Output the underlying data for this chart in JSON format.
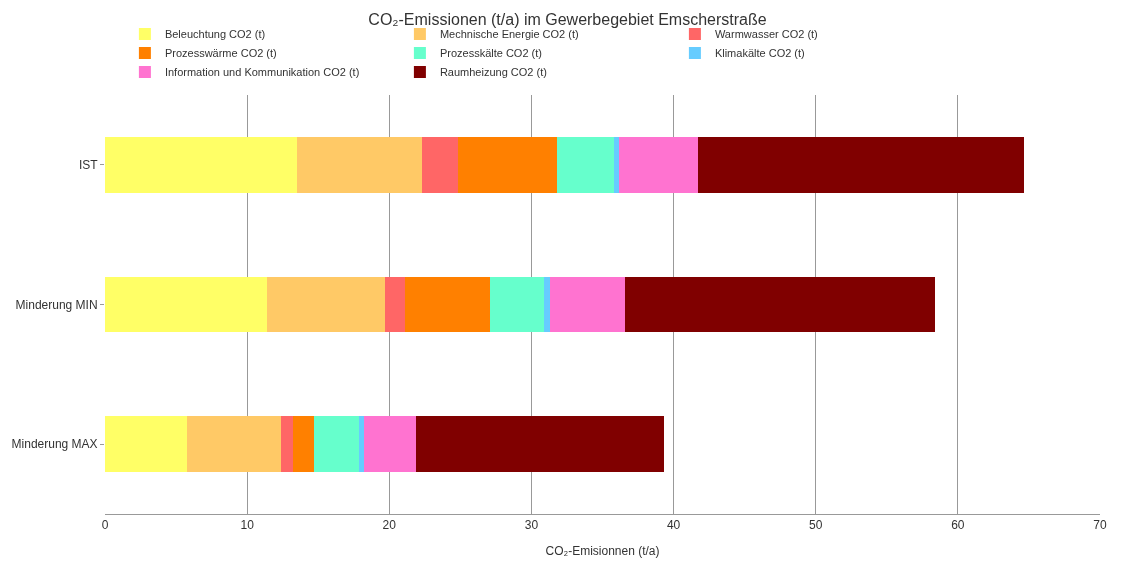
{
  "chart_data": {
    "type": "bar",
    "orientation": "horizontal",
    "stacked": true,
    "title": "CO₂-Emissionen (t/a) im Gewerbegebiet Emscherstraße",
    "xlabel": "CO₂-Emisionnen (t/a)",
    "categories": [
      "IST",
      "Minderung MIN",
      "Minderung MAX"
    ],
    "series": [
      {
        "name": "Beleuchtung CO2 (t)",
        "color": "#ffff66",
        "values": [
          13.5,
          11.4,
          5.8
        ]
      },
      {
        "name": "Mechnische Energie CO2 (t)",
        "color": "#ffc966",
        "values": [
          8.8,
          8.3,
          6.6
        ]
      },
      {
        "name": "Warmwasser CO2 (t)",
        "color": "#ff6666",
        "values": [
          2.5,
          1.4,
          0.8
        ]
      },
      {
        "name": "Prozesswärme CO2 (t)",
        "color": "#ff8000",
        "values": [
          7.0,
          6.0,
          1.5
        ]
      },
      {
        "name": "Prozesskälte CO2 (t)",
        "color": "#66ffcc",
        "values": [
          4.0,
          3.8,
          3.2
        ]
      },
      {
        "name": "Klimakälte CO2 (t)",
        "color": "#66ccff",
        "values": [
          0.35,
          0.4,
          0.35
        ]
      },
      {
        "name": "Information und Kommunikation CO2 (t)",
        "color": "#ff73d0",
        "values": [
          5.6,
          5.3,
          3.6
        ]
      },
      {
        "name": "Raumheizung CO2 (t)",
        "color": "#800000",
        "values": [
          22.9,
          21.8,
          17.5
        ]
      }
    ],
    "xlim": [
      0,
      70
    ],
    "xticks": [
      0,
      10,
      20,
      30,
      40,
      50,
      60,
      70
    ],
    "grid": "x",
    "legend": "top"
  }
}
